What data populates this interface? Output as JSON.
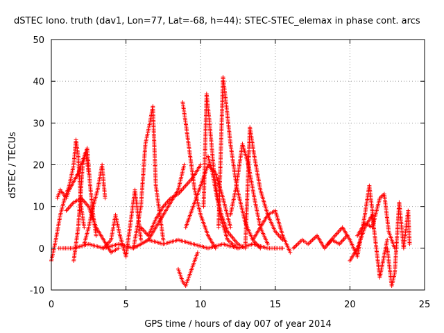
{
  "chart_data": {
    "type": "scatter",
    "title": "dSTEC Iono. truth (dav1, Lon=77, Lat=-68, h=44): STEC-STEC_elemax in phase cont. arcs",
    "xlabel": "GPS time / hours of day 007 of year 2014",
    "ylabel": "dSTEC  / TECUs",
    "xlim": [
      0,
      25
    ],
    "ylim": [
      -10,
      50
    ],
    "xticks": [
      "0",
      "5",
      "10",
      "15",
      "20",
      "25"
    ],
    "yticks": [
      "-10",
      "0",
      "10",
      "20",
      "30",
      "40",
      "50"
    ],
    "grid": true,
    "marker": "+",
    "color": "#ff0000",
    "series": [
      {
        "x": [
          0.0,
          0.3,
          0.6,
          0.9,
          1.2,
          1.5,
          1.65,
          1.8,
          2.0,
          2.2
        ],
        "y": [
          -3,
          2,
          8,
          12,
          15,
          20,
          26,
          22,
          10,
          5
        ]
      },
      {
        "x": [
          0.4,
          0.6,
          0.8,
          1.0,
          1.2,
          1.5,
          1.8,
          2.0,
          2.3,
          2.5
        ],
        "y": [
          12,
          14,
          13,
          12,
          14,
          16,
          18,
          20,
          23,
          18
        ]
      },
      {
        "x": [
          1.5,
          1.8,
          2.1,
          2.4,
          2.6,
          2.8,
          3.0
        ],
        "y": [
          -3,
          5,
          20,
          24,
          15,
          8,
          3
        ]
      },
      {
        "x": [
          2.2,
          2.5,
          2.8,
          3.1,
          3.4,
          3.6
        ],
        "y": [
          1,
          5,
          10,
          14,
          20,
          12
        ]
      },
      {
        "x": [
          1.0,
          1.5,
          2.0,
          2.5,
          3.0,
          3.5,
          4.0,
          4.5
        ],
        "y": [
          9,
          11,
          12,
          10,
          5,
          2,
          -1,
          0
        ]
      },
      {
        "x": [
          3.5,
          4.0,
          4.3,
          4.6,
          5.0,
          5.3,
          5.6,
          6.0
        ],
        "y": [
          0,
          2,
          8,
          3,
          -2,
          6,
          14,
          2
        ]
      },
      {
        "x": [
          5.5,
          6.0,
          6.3,
          6.6,
          6.8,
          7.0,
          7.5
        ],
        "y": [
          0,
          10,
          25,
          30,
          34,
          15,
          2
        ]
      },
      {
        "x": [
          6.0,
          6.5,
          7.0,
          7.5,
          8.0,
          8.5,
          9.0,
          9.5,
          10.0
        ],
        "y": [
          5,
          3,
          7,
          10,
          12,
          13,
          15,
          17,
          20
        ]
      },
      {
        "x": [
          6.5,
          7.0,
          7.5,
          8.0,
          8.5,
          8.9
        ],
        "y": [
          2,
          5,
          8,
          11,
          14,
          20
        ]
      },
      {
        "x": [
          8.5,
          8.8,
          9.0,
          9.2,
          9.5,
          9.8
        ],
        "y": [
          -5,
          -8,
          -9,
          -7,
          -4,
          -1
        ]
      },
      {
        "x": [
          8.8,
          9.0,
          9.3,
          9.6,
          10.0,
          10.5,
          11.0
        ],
        "y": [
          35,
          30,
          22,
          14,
          8,
          3,
          0
        ]
      },
      {
        "x": [
          9.0,
          9.5,
          10.0,
          10.5,
          11.0,
          11.5,
          12.0
        ],
        "y": [
          5,
          10,
          15,
          20,
          18,
          12,
          5
        ]
      },
      {
        "x": [
          10.2,
          10.4,
          10.6,
          10.9,
          11.3,
          11.8,
          12.5
        ],
        "y": [
          10,
          37,
          30,
          18,
          8,
          2,
          0
        ]
      },
      {
        "x": [
          10.5,
          10.8,
          11.1,
          11.4,
          11.8,
          12.5,
          13.0
        ],
        "y": [
          22,
          18,
          12,
          8,
          4,
          1,
          0
        ]
      },
      {
        "x": [
          11.2,
          11.5,
          11.7,
          12.0,
          12.4,
          13.0,
          13.5,
          14.0
        ],
        "y": [
          5,
          41,
          35,
          25,
          15,
          6,
          2,
          0
        ]
      },
      {
        "x": [
          12.0,
          12.4,
          12.8,
          13.2,
          13.6,
          14.0,
          14.5
        ],
        "y": [
          8,
          15,
          25,
          20,
          12,
          5,
          1
        ]
      },
      {
        "x": [
          13.0,
          13.3,
          13.6,
          14.0,
          14.5,
          15.0,
          15.5
        ],
        "y": [
          1,
          29,
          22,
          14,
          8,
          4,
          2
        ]
      },
      {
        "x": [
          13.5,
          14.0,
          14.5,
          15.0,
          15.5,
          16.0
        ],
        "y": [
          2,
          5,
          8,
          9,
          3,
          -1
        ]
      },
      {
        "x": [
          16.2,
          16.8,
          17.2,
          17.8,
          18.3,
          18.8,
          19.3,
          19.8
        ],
        "y": [
          0,
          2,
          1,
          3,
          0,
          2,
          1,
          3
        ]
      },
      {
        "x": [
          18.5,
          19.0,
          19.5,
          20.0,
          20.5,
          21.0,
          21.3,
          21.6
        ],
        "y": [
          1,
          3,
          5,
          2,
          -2,
          8,
          15,
          6
        ]
      },
      {
        "x": [
          20.5,
          21.0,
          21.5,
          22.0,
          22.3,
          22.6,
          23.0
        ],
        "y": [
          3,
          6,
          5,
          12,
          13,
          4,
          0
        ]
      },
      {
        "x": [
          20.0,
          20.5,
          21.0,
          21.5,
          22.0,
          22.5
        ],
        "y": [
          -3,
          0,
          5,
          8,
          -7,
          2
        ]
      },
      {
        "x": [
          22.5,
          22.8,
          23.0,
          23.3,
          23.6,
          23.9,
          24.0
        ],
        "y": [
          0,
          -9,
          -6,
          11,
          0,
          9,
          1
        ]
      },
      {
        "x": [
          0.5,
          1.5,
          2.5,
          3.5,
          4.5,
          5.5,
          6.5,
          7.5,
          8.5,
          9.5,
          10.5,
          11.5,
          12.5,
          13.5,
          14.5,
          15.5
        ],
        "y": [
          0,
          0,
          1,
          0,
          1,
          0,
          2,
          1,
          2,
          1,
          0,
          1,
          0,
          1,
          0,
          0
        ]
      }
    ]
  }
}
